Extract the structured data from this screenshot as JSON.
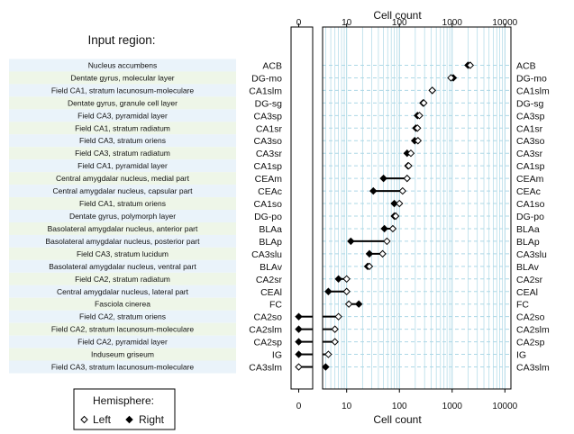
{
  "chart_data": {
    "type": "dot-dumbbell",
    "title": "",
    "region_panel_title": "Input region:",
    "axis_label_top": "Cell count",
    "axis_label_bottom": "Cell count",
    "x_scale": "log10 (zero shown in separate strip)",
    "zero_tick": "0",
    "ticks": [
      {
        "value": 10,
        "label": "10"
      },
      {
        "value": 100,
        "label": "100"
      },
      {
        "value": 1000,
        "label": "1000"
      },
      {
        "value": 10000,
        "label": "10000"
      }
    ],
    "xlim": [
      3.5,
      13000
    ],
    "legend": {
      "title": "Hemisphere:",
      "placement": "bottom-left",
      "entries": [
        {
          "label": "Left",
          "marker": "open-diamond"
        },
        {
          "label": "Right",
          "marker": "filled-diamond"
        }
      ]
    },
    "grid_color": "#add8e6",
    "row_band_colors": [
      "#eaf3fa",
      "#eef6e8"
    ],
    "rows": [
      {
        "name": "Nucleus accumbens",
        "abbr": "ACB",
        "left": 2200,
        "right": 2000
      },
      {
        "name": "Dentate gyrus, molecular layer",
        "abbr": "DG-mo",
        "left": 950,
        "right": 1050
      },
      {
        "name": "Field CA1, stratum lacunosum-moleculare",
        "abbr": "CA1slm",
        "left": 420,
        "right": 420
      },
      {
        "name": "Dentate gyrus, granule cell layer",
        "abbr": "DG-sg",
        "left": 290,
        "right": 280
      },
      {
        "name": "Field CA3, pyramidal layer",
        "abbr": "CA3sp",
        "left": 240,
        "right": 220
      },
      {
        "name": "Field CA1, stratum radiatum",
        "abbr": "CA1sr",
        "left": 220,
        "right": 205
      },
      {
        "name": "Field CA3, stratum oriens",
        "abbr": "CA3so",
        "left": 225,
        "right": 195
      },
      {
        "name": "Field CA3, stratum radiatum",
        "abbr": "CA3sr",
        "left": 165,
        "right": 140
      },
      {
        "name": "Field CA1, pyramidal layer",
        "abbr": "CA1sp",
        "left": 150,
        "right": 145
      },
      {
        "name": "Central amygdalar nucleus, medial part",
        "abbr": "CEAm",
        "left": 140,
        "right": 50
      },
      {
        "name": "Central amygdalar nucleus, capsular part",
        "abbr": "CEAc",
        "left": 115,
        "right": 32
      },
      {
        "name": "Field CA1, stratum oriens",
        "abbr": "CA1so",
        "left": 100,
        "right": 80
      },
      {
        "name": "Dentate gyrus, polymorph layer",
        "abbr": "DG-po",
        "left": 85,
        "right": 80
      },
      {
        "name": "Basolateral amygdalar nucleus, anterior part",
        "abbr": "BLAa",
        "left": 75,
        "right": 52
      },
      {
        "name": "Basolateral amygdalar nucleus, posterior part",
        "abbr": "BLAp",
        "left": 58,
        "right": 12
      },
      {
        "name": "Field CA3, stratum lucidum",
        "abbr": "CA3slu",
        "left": 48,
        "right": 27
      },
      {
        "name": "Basolateral amygdalar nucleus, ventral part",
        "abbr": "BLAv",
        "left": 27,
        "right": 25
      },
      {
        "name": "Field CA2, stratum radiatum",
        "abbr": "CA2sr",
        "left": 10,
        "right": 7
      },
      {
        "name": "Central amygdalar nucleus, lateral part",
        "abbr": "CEAl",
        "left": 10,
        "right": 4.5
      },
      {
        "name": "Fasciola cinerea",
        "abbr": "FC",
        "left": 11,
        "right": 17
      },
      {
        "name": "Field CA2, stratum oriens",
        "abbr": "CA2so",
        "left": 7,
        "right": 0
      },
      {
        "name": "Field CA2, stratum lacunosum-moleculare",
        "abbr": "CA2slm",
        "left": 6,
        "right": 0
      },
      {
        "name": "Field CA2, pyramidal layer",
        "abbr": "CA2sp",
        "left": 6,
        "right": 0
      },
      {
        "name": "Induseum griseum",
        "abbr": "IG",
        "left": 4.5,
        "right": 0
      },
      {
        "name": "Field CA3, stratum lacunosum-moleculare",
        "abbr": "CA3slm",
        "left": 0,
        "right": 4
      }
    ]
  }
}
